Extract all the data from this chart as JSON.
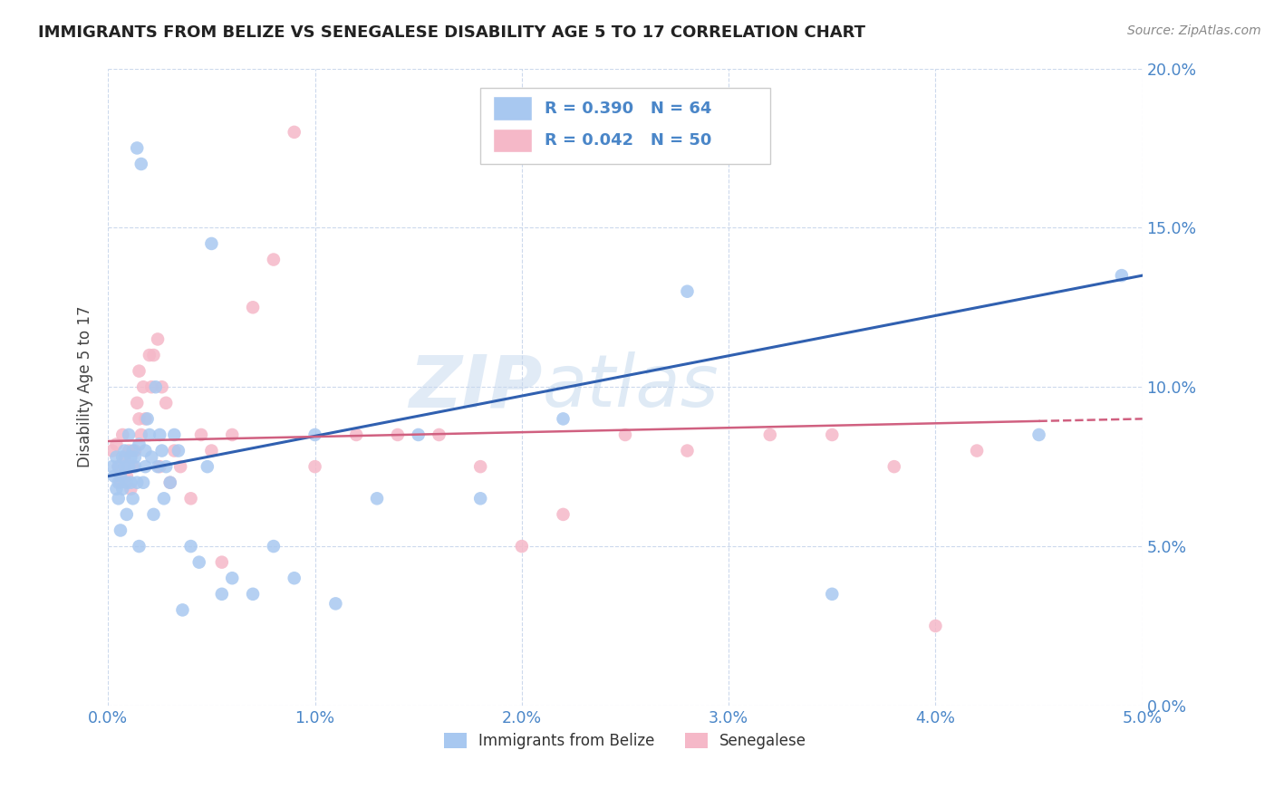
{
  "title": "IMMIGRANTS FROM BELIZE VS SENEGALESE DISABILITY AGE 5 TO 17 CORRELATION CHART",
  "source": "Source: ZipAtlas.com",
  "ylabel": "Disability Age 5 to 17",
  "xlim": [
    0.0,
    5.0
  ],
  "ylim": [
    0.0,
    20.0
  ],
  "yticks": [
    0.0,
    5.0,
    10.0,
    15.0,
    20.0
  ],
  "xticks": [
    0.0,
    1.0,
    2.0,
    3.0,
    4.0,
    5.0
  ],
  "blue_color": "#a8c8f0",
  "pink_color": "#f5b8c8",
  "blue_line_color": "#3060b0",
  "pink_line_color": "#d06080",
  "title_color": "#222222",
  "axis_color": "#4a86c8",
  "legend_label1": "Immigrants from Belize",
  "legend_label2": "Senegalese",
  "watermark_zip": "ZIP",
  "watermark_atlas": "atlas",
  "watermark_color_zip": "#c8dff0",
  "watermark_color_atlas": "#b8d0e8",
  "blue_x": [
    0.02,
    0.03,
    0.04,
    0.04,
    0.05,
    0.05,
    0.05,
    0.06,
    0.06,
    0.07,
    0.07,
    0.08,
    0.08,
    0.09,
    0.09,
    0.1,
    0.1,
    0.11,
    0.11,
    0.12,
    0.12,
    0.13,
    0.13,
    0.14,
    0.14,
    0.15,
    0.15,
    0.16,
    0.17,
    0.18,
    0.18,
    0.19,
    0.2,
    0.21,
    0.22,
    0.23,
    0.24,
    0.25,
    0.26,
    0.27,
    0.28,
    0.3,
    0.32,
    0.34,
    0.36,
    0.4,
    0.44,
    0.48,
    0.5,
    0.55,
    0.6,
    0.7,
    0.8,
    0.9,
    1.0,
    1.1,
    1.3,
    1.5,
    1.8,
    2.2,
    2.8,
    3.5,
    4.5,
    4.9
  ],
  "blue_y": [
    7.5,
    7.2,
    6.8,
    7.8,
    6.5,
    7.0,
    7.5,
    5.5,
    7.2,
    6.8,
    7.8,
    7.5,
    8.0,
    7.0,
    6.0,
    7.5,
    8.5,
    7.8,
    7.0,
    6.5,
    8.0,
    7.5,
    7.8,
    17.5,
    7.0,
    8.2,
    5.0,
    17.0,
    7.0,
    7.5,
    8.0,
    9.0,
    8.5,
    7.8,
    6.0,
    10.0,
    7.5,
    8.5,
    8.0,
    6.5,
    7.5,
    7.0,
    8.5,
    8.0,
    3.0,
    5.0,
    4.5,
    7.5,
    14.5,
    3.5,
    4.0,
    3.5,
    5.0,
    4.0,
    8.5,
    3.2,
    6.5,
    8.5,
    6.5,
    9.0,
    13.0,
    3.5,
    8.5,
    13.5
  ],
  "pink_x": [
    0.02,
    0.04,
    0.05,
    0.06,
    0.07,
    0.08,
    0.09,
    0.1,
    0.1,
    0.11,
    0.12,
    0.13,
    0.14,
    0.15,
    0.15,
    0.16,
    0.17,
    0.18,
    0.2,
    0.21,
    0.22,
    0.24,
    0.25,
    0.26,
    0.28,
    0.3,
    0.32,
    0.35,
    0.4,
    0.45,
    0.5,
    0.55,
    0.6,
    0.7,
    0.8,
    0.9,
    1.0,
    1.2,
    1.4,
    1.6,
    1.8,
    2.0,
    2.2,
    2.5,
    2.8,
    3.2,
    3.5,
    3.8,
    4.0,
    4.2
  ],
  "pink_y": [
    8.0,
    8.2,
    7.5,
    7.0,
    8.5,
    7.8,
    7.2,
    8.0,
    7.5,
    6.8,
    7.5,
    8.0,
    9.5,
    9.0,
    10.5,
    8.5,
    10.0,
    9.0,
    11.0,
    10.0,
    11.0,
    11.5,
    7.5,
    10.0,
    9.5,
    7.0,
    8.0,
    7.5,
    6.5,
    8.5,
    8.0,
    4.5,
    8.5,
    12.5,
    14.0,
    18.0,
    7.5,
    8.5,
    8.5,
    8.5,
    7.5,
    5.0,
    6.0,
    8.5,
    8.0,
    8.5,
    8.5,
    7.5,
    2.5,
    8.0
  ],
  "blue_line_x0": 0.0,
  "blue_line_y0": 7.2,
  "blue_line_x1": 5.0,
  "blue_line_y1": 13.5,
  "pink_line_x0": 0.0,
  "pink_line_y0": 8.3,
  "pink_line_x1": 5.0,
  "pink_line_y1": 9.0
}
